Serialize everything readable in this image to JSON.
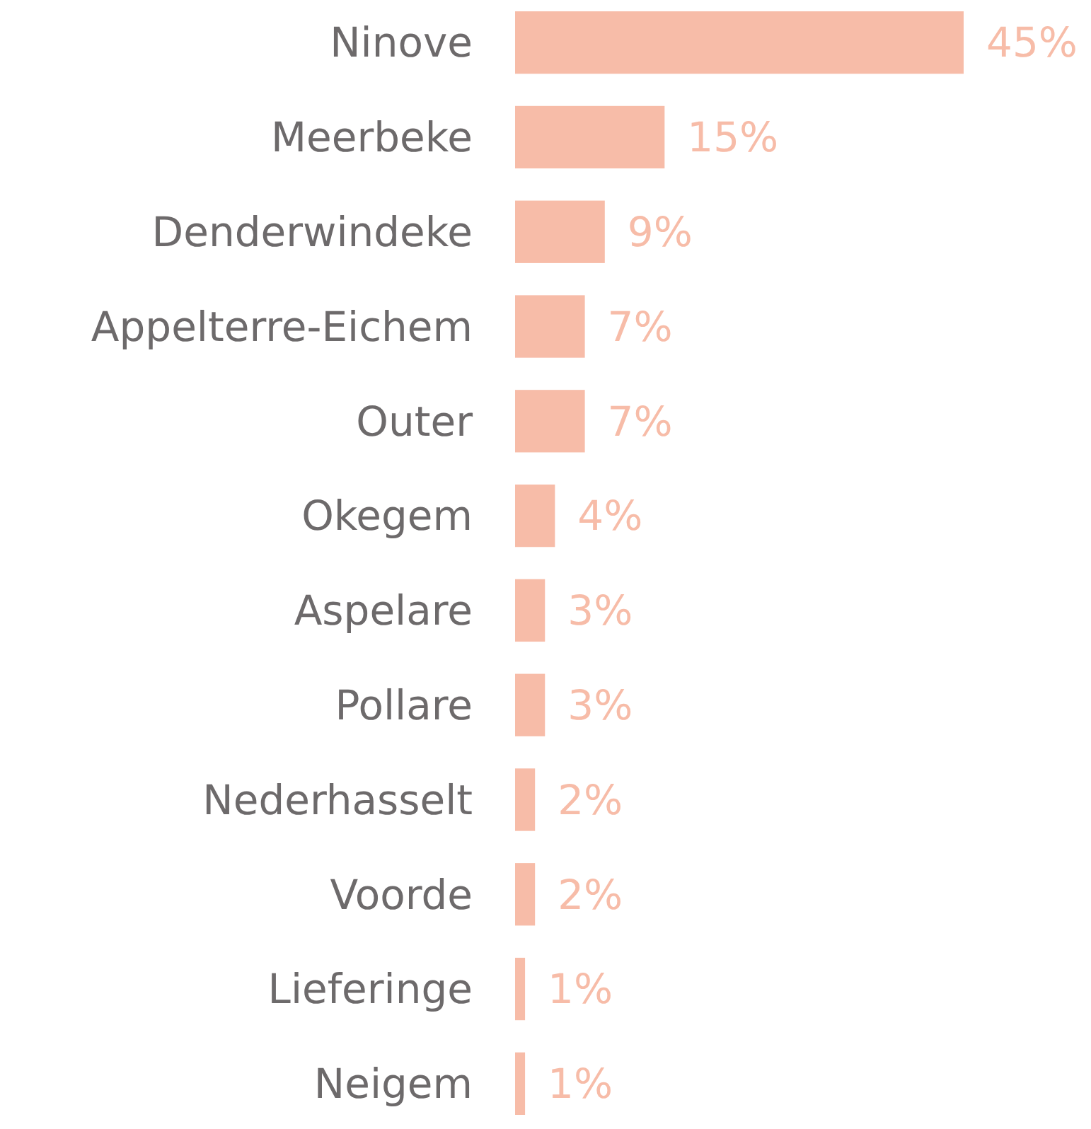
{
  "chart_data": {
    "type": "bar",
    "orientation": "horizontal",
    "categories": [
      "Ninove",
      "Meerbeke",
      "Denderwindeke",
      "Appelterre-Eichem",
      "Outer",
      "Okegem",
      "Aspelare",
      "Pollare",
      "Nederhasselt",
      "Voorde",
      "Lieferinge",
      "Neigem"
    ],
    "values": [
      45,
      15,
      9,
      7,
      7,
      4,
      3,
      3,
      2,
      2,
      1,
      1
    ],
    "value_labels": [
      "45%",
      "15%",
      "9%",
      "7%",
      "7%",
      "4%",
      "3%",
      "3%",
      "2%",
      "2%",
      "1%",
      "1%"
    ],
    "color": "#f7bca8"
  }
}
